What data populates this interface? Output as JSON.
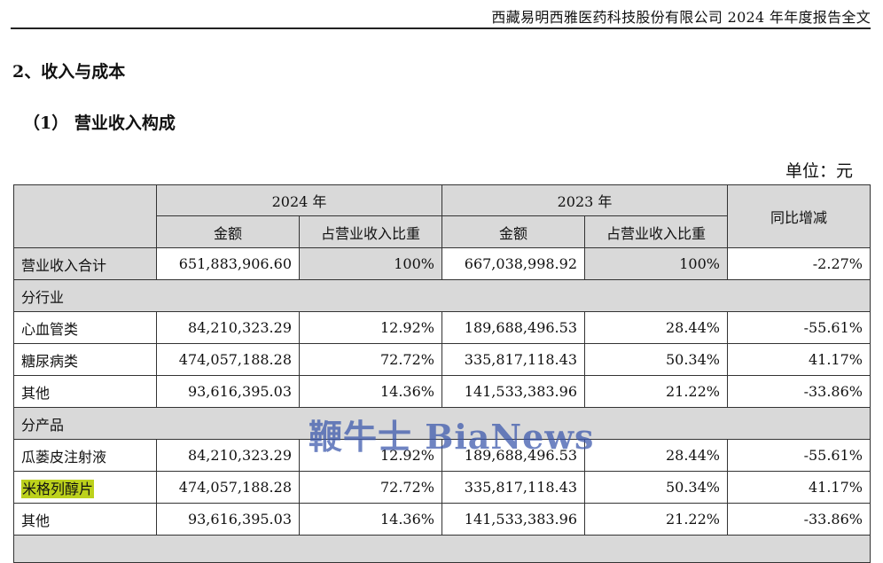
{
  "header": {
    "title": "西藏易明西雅医药科技股份有限公司 2024 年年度报告全文"
  },
  "section": {
    "title": "2、收入与成本"
  },
  "subsection": {
    "title": "（1） 营业收入构成"
  },
  "unit": {
    "label": "单位：元"
  },
  "table": {
    "year_2024": "2024 年",
    "year_2023": "2023 年",
    "yoy": "同比增减",
    "amount": "金额",
    "ratio": "占营业收入比重",
    "total": {
      "name": "营业收入合计",
      "a2024": "651,883,906.60",
      "r2024": "100%",
      "a2023": "667,038,998.92",
      "r2023": "100%",
      "yoy": "-2.27%"
    },
    "by_industry": "分行业",
    "industry_rows": [
      {
        "name": "心血管类",
        "a2024": "84,210,323.29",
        "r2024": "12.92%",
        "a2023": "189,688,496.53",
        "r2023": "28.44%",
        "yoy": "-55.61%"
      },
      {
        "name": "糖尿病类",
        "a2024": "474,057,188.28",
        "r2024": "72.72%",
        "a2023": "335,817,118.43",
        "r2023": "50.34%",
        "yoy": "41.17%"
      },
      {
        "name": "其他",
        "a2024": "93,616,395.03",
        "r2024": "14.36%",
        "a2023": "141,533,383.96",
        "r2023": "21.22%",
        "yoy": "-33.86%"
      }
    ],
    "by_product": "分产品",
    "product_rows": [
      {
        "name": "瓜蒌皮注射液",
        "a2024": "84,210,323.29",
        "r2024": "12.92%",
        "a2023": "189,688,496.53",
        "r2023": "28.44%",
        "yoy": "-55.61%"
      },
      {
        "name": "米格列醇片",
        "a2024": "474,057,188.28",
        "r2024": "72.72%",
        "a2023": "335,817,118.43",
        "r2023": "50.34%",
        "yoy": "41.17%"
      },
      {
        "name": "其他",
        "a2024": "93,616,395.03",
        "r2024": "14.36%",
        "a2023": "141,533,383.96",
        "r2023": "21.22%",
        "yoy": "-33.86%"
      }
    ]
  },
  "watermark": {
    "text": "鞭牛士 BiaNews"
  },
  "colors": {
    "header_fill": "#d9d9d9",
    "highlight": "#bcd11c",
    "watermark": "#3755aa"
  }
}
